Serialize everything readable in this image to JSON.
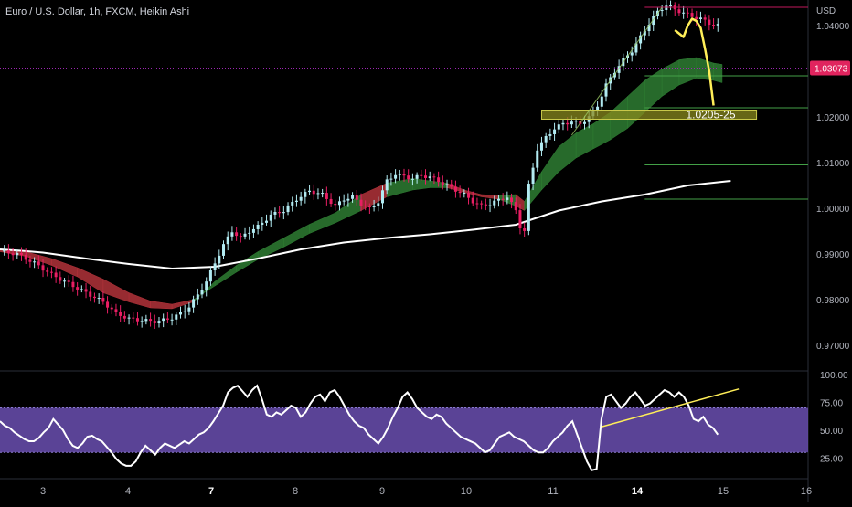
{
  "header": {
    "title": "Euro / U.S. Dollar, 1h, FXCM, Heikin Ashi",
    "currency": "USD"
  },
  "colors": {
    "background": "#000000",
    "bull_candle": "#b2ebf2",
    "bear_candle": "#e91e63",
    "bull_cloud": "#2e7d32",
    "bear_cloud": "#b2323a",
    "moving_average": "#ffffff",
    "last_price_bg": "#e0245e",
    "annotation": "#ffee58",
    "zone_fill": "#8a8a1e",
    "rsi_band": "#6a4fb0",
    "rsi_line": "#ffffff",
    "level_red": "#c2185b",
    "level_green": "#43a047"
  },
  "chart_data": [
    {
      "type": "candlestick",
      "chart_style": "Heikin Ashi",
      "symbol": "EUR/USD",
      "timeframe": "1h",
      "ylim": [
        0.965,
        1.044
      ],
      "y_ticks": [
        "0.97000",
        "0.98000",
        "0.99000",
        "1.00000",
        "1.01000",
        "1.02000",
        "1.04000"
      ],
      "x_ticks": [
        "3",
        "4",
        "7",
        "8",
        "9",
        "10",
        "11",
        "14",
        "15",
        "16"
      ],
      "bold_x_ticks": [
        "7",
        "14"
      ],
      "last_price": "1.03073",
      "last_price_value": 1.0307,
      "moving_average": {
        "x": [
          0,
          5,
          10,
          20,
          30,
          40,
          50,
          60,
          70,
          80,
          90,
          100,
          110,
          120,
          130,
          140,
          150,
          160,
          170
        ],
        "y": [
          0.991,
          0.9907,
          0.9903,
          0.989,
          0.9878,
          0.9868,
          0.9872,
          0.989,
          0.991,
          0.9925,
          0.9935,
          0.9943,
          0.9953,
          0.9964,
          0.9995,
          1.0015,
          1.003,
          1.005,
          1.006
        ]
      },
      "cloud_upper": {
        "x": [
          0,
          6,
          12,
          18,
          24,
          30,
          35,
          40,
          45,
          50,
          55,
          60,
          66,
          72,
          78,
          84,
          90,
          96,
          100,
          104,
          108,
          112,
          116,
          120,
          122,
          126,
          130,
          134,
          138,
          142,
          146,
          150,
          154,
          158,
          162,
          166,
          168
        ],
        "y": [
          0.9905,
          0.9895,
          0.9875,
          0.985,
          0.9815,
          0.9795,
          0.9782,
          0.978,
          0.9795,
          0.984,
          0.9875,
          0.9905,
          0.9935,
          0.9965,
          0.999,
          1.003,
          1.0055,
          1.0065,
          1.006,
          1.0055,
          1.004,
          1.003,
          1.0028,
          1.003,
          1.0015,
          1.008,
          1.0135,
          1.0165,
          1.0185,
          1.021,
          1.0245,
          1.028,
          1.0305,
          1.0325,
          1.033,
          1.0318,
          1.0315
        ]
      },
      "cloud_lower": {
        "x": [
          0,
          6,
          12,
          18,
          24,
          30,
          35,
          40,
          45,
          50,
          55,
          60,
          66,
          72,
          78,
          84,
          90,
          96,
          100,
          104,
          108,
          112,
          116,
          120,
          122,
          126,
          130,
          134,
          138,
          142,
          146,
          150,
          154,
          158,
          162,
          166,
          168
        ],
        "y": [
          0.991,
          0.9905,
          0.989,
          0.987,
          0.9845,
          0.9815,
          0.9797,
          0.979,
          0.98,
          0.983,
          0.986,
          0.9888,
          0.9915,
          0.9945,
          0.9968,
          0.9995,
          1.0025,
          1.004,
          1.0045,
          1.0045,
          1.0035,
          1.0025,
          1.002,
          1.0005,
          0.9995,
          1.004,
          1.008,
          1.011,
          1.013,
          1.015,
          1.0175,
          1.021,
          1.0245,
          1.027,
          1.0285,
          1.028,
          1.0275
        ]
      },
      "close_path": {
        "x": [
          0,
          4,
          8,
          12,
          16,
          20,
          24,
          27,
          30,
          33,
          36,
          38,
          40,
          42,
          44,
          46,
          48,
          50,
          52,
          54,
          56,
          58,
          60,
          63,
          66,
          69,
          72,
          75,
          78,
          80,
          82,
          84,
          86,
          88,
          90,
          92,
          94,
          96,
          98,
          100,
          102,
          104,
          106,
          108,
          110,
          112,
          114,
          116,
          118,
          120,
          121,
          122,
          123,
          125,
          127,
          129,
          131,
          133,
          135,
          137,
          139,
          141,
          143,
          145,
          147,
          149,
          151,
          153,
          155,
          157,
          159,
          161,
          163,
          165,
          167
        ],
        "y": [
          0.9905,
          0.99,
          0.988,
          0.9855,
          0.9835,
          0.9815,
          0.9795,
          0.977,
          0.9758,
          0.9755,
          0.9752,
          0.9755,
          0.976,
          0.977,
          0.9785,
          0.981,
          0.984,
          0.988,
          0.992,
          0.995,
          0.9935,
          0.995,
          0.996,
          0.9985,
          0.9995,
          1.002,
          1.0038,
          1.003,
          1.0005,
          1.002,
          1.0025,
          1.001,
          0.9998,
          1.0015,
          1.006,
          1.0075,
          1.007,
          1.0065,
          1.0072,
          1.0068,
          1.006,
          1.005,
          1.004,
          1.003,
          1.0015,
          1.0005,
          1.001,
          1.0018,
          1.0025,
          0.9995,
          0.996,
          0.995,
          1.005,
          1.013,
          1.0155,
          1.0175,
          1.0185,
          1.019,
          1.0185,
          1.02,
          1.0225,
          1.027,
          1.03,
          1.0325,
          1.0345,
          1.0375,
          1.0405,
          1.043,
          1.0445,
          1.0435,
          1.0428,
          1.042,
          1.0415,
          1.0405,
          1.04
        ]
      },
      "x_domain": [
        0,
        188
      ],
      "tick_positions": [
        5,
        15,
        25,
        35,
        45,
        55,
        65,
        75,
        85,
        95
      ],
      "horizontal_levels": [
        {
          "value": 1.044,
          "color": "red",
          "x_from": 150
        },
        {
          "value": 1.029,
          "color": "green",
          "x_from": 150
        },
        {
          "value": 1.022,
          "color": "green",
          "x_from": 150
        },
        {
          "value": 1.0095,
          "color": "green",
          "x_from": 150
        },
        {
          "value": 1.002,
          "color": "green",
          "x_from": 150
        }
      ],
      "zone": {
        "from": 1.0195,
        "to": 1.0215,
        "x_from": 126,
        "x_to": 176,
        "label": "1.0205-25"
      },
      "annotation_path": {
        "x": [
          157,
          159,
          160,
          161,
          162,
          163,
          164,
          165,
          166
        ],
        "y": [
          1.039,
          1.0375,
          1.04,
          1.0415,
          1.041,
          1.0395,
          1.035,
          1.03,
          1.0225
        ]
      },
      "trendline": {
        "x": [
          133,
          154
        ],
        "y": [
          1.016,
          1.044
        ]
      }
    },
    {
      "type": "line",
      "indicator": "RSI",
      "ylim": [
        8,
        100
      ],
      "y_ticks": [
        "100.00",
        "75.00",
        "50.00",
        "25.00"
      ],
      "band": [
        30,
        70
      ],
      "values": [
        58,
        54,
        52,
        48,
        45,
        42,
        40,
        40,
        43,
        48,
        52,
        60,
        55,
        50,
        42,
        36,
        34,
        38,
        44,
        45,
        42,
        40,
        35,
        30,
        24,
        20,
        18,
        18,
        22,
        30,
        36,
        32,
        28,
        34,
        38,
        36,
        34,
        37,
        40,
        38,
        42,
        46,
        48,
        52,
        58,
        65,
        72,
        84,
        88,
        90,
        85,
        80,
        86,
        90,
        78,
        64,
        62,
        66,
        64,
        68,
        72,
        70,
        62,
        66,
        74,
        80,
        82,
        76,
        84,
        86,
        80,
        72,
        64,
        58,
        54,
        52,
        46,
        42,
        38,
        44,
        52,
        62,
        70,
        80,
        84,
        78,
        70,
        66,
        62,
        60,
        64,
        62,
        56,
        52,
        48,
        44,
        42,
        40,
        38,
        34,
        30,
        32,
        38,
        44,
        46,
        48,
        44,
        42,
        40,
        36,
        32,
        30,
        30,
        34,
        40,
        44,
        48,
        54,
        58,
        46,
        34,
        22,
        14,
        15,
        60,
        80,
        82,
        76,
        70,
        74,
        80,
        84,
        78,
        72,
        74,
        78,
        82,
        86,
        84,
        80,
        84,
        80,
        72,
        60,
        58,
        62,
        55,
        52,
        46
      ],
      "trendline": {
        "x": [
          124,
          147
        ],
        "y": [
          53,
          87
        ]
      }
    }
  ]
}
